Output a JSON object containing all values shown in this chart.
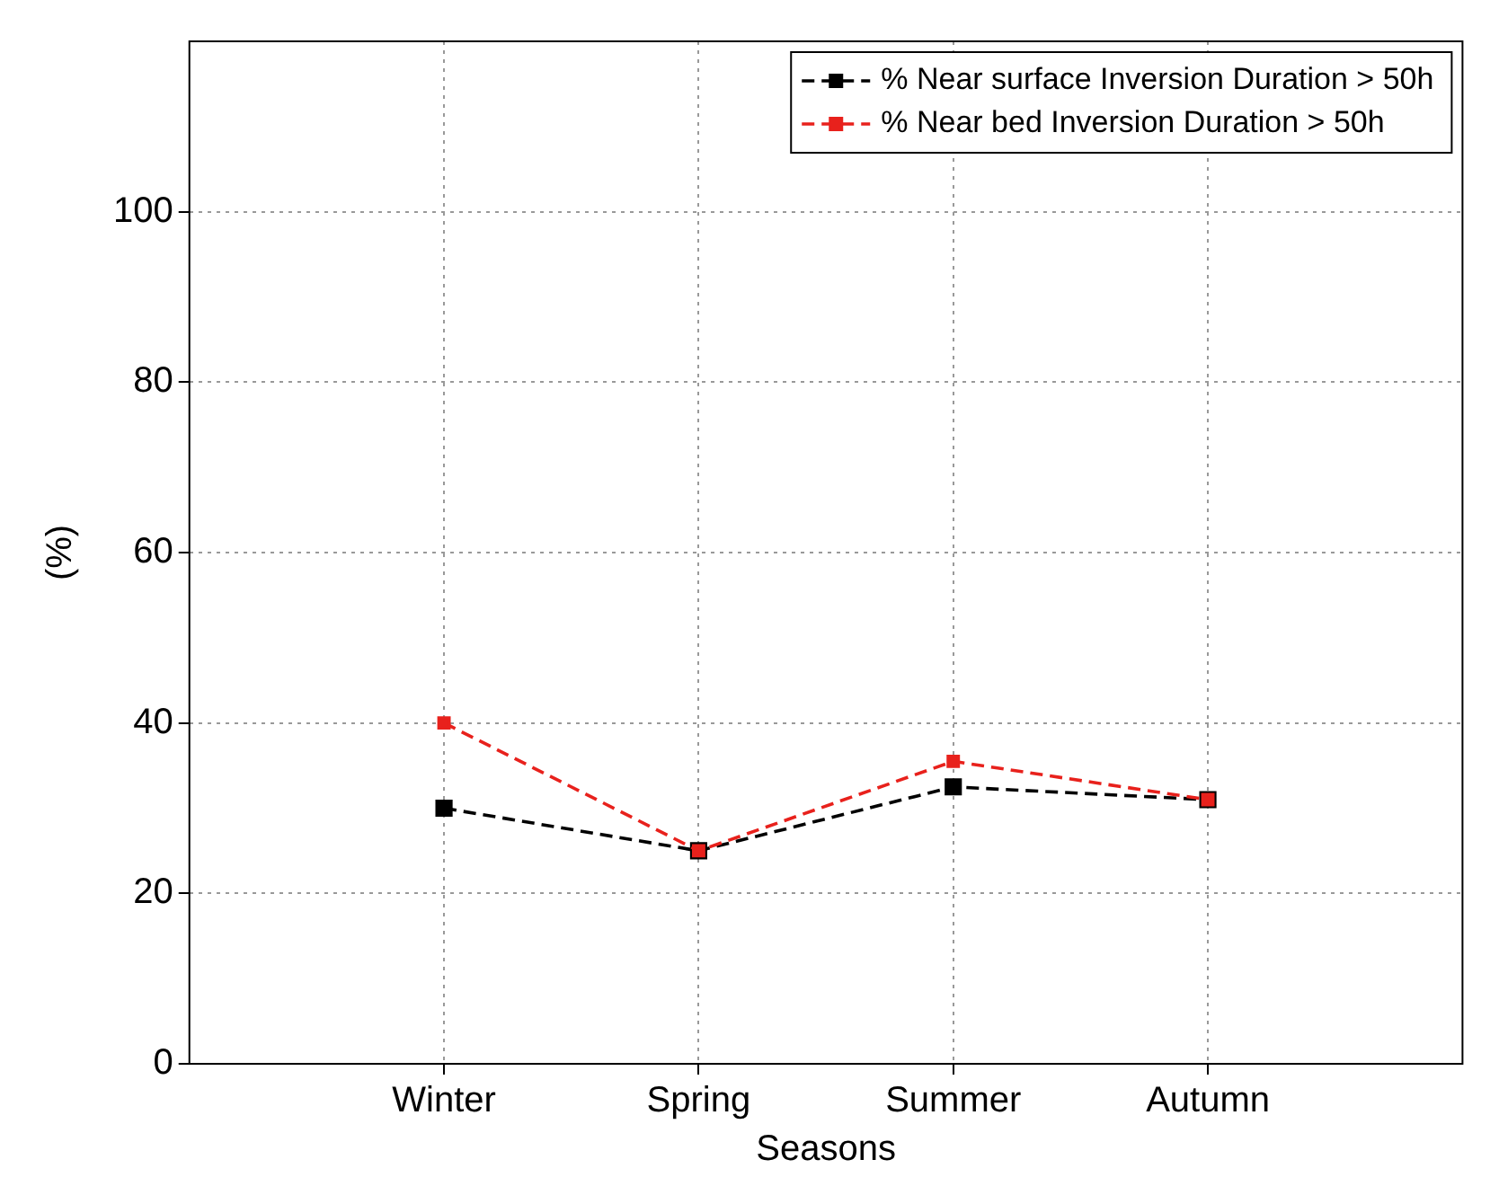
{
  "chart_data": {
    "type": "line",
    "xlabel": "Seasons",
    "ylabel": "(%)",
    "categories": [
      "Winter",
      "Spring",
      "Summer",
      "Autumn"
    ],
    "series": [
      {
        "name": "% Near surface Inversion Duration > 50h",
        "color": "#000000",
        "values": [
          30,
          25,
          32.5,
          31
        ]
      },
      {
        "name": "% Near bed Inversion Duration > 50h",
        "color": "#e8211c",
        "values": [
          40,
          25,
          35.5,
          31
        ]
      }
    ],
    "ylim": [
      0,
      120
    ],
    "yticks": [
      0,
      20,
      40,
      60,
      80,
      100
    ],
    "grid": true,
    "legend": "top right",
    "marker": "square",
    "line_style": "dashed"
  }
}
